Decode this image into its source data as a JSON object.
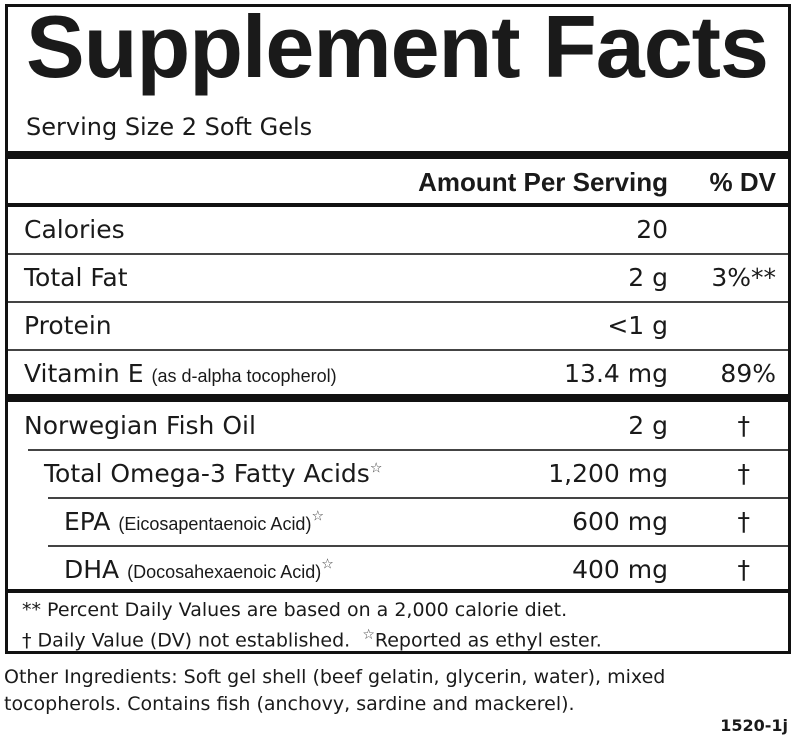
{
  "title": "Supplement Facts",
  "serving_size": "Serving Size 2 Soft Gels",
  "header": {
    "amount": "Amount Per Serving",
    "dv": "% DV"
  },
  "nutrients": [
    {
      "name": "Calories",
      "detail": "",
      "amount": "20",
      "dv": ""
    },
    {
      "name": "Total Fat",
      "detail": "",
      "amount": "2 g",
      "dv": "3%**"
    },
    {
      "name": "Protein",
      "detail": "",
      "amount": "<1 g",
      "dv": ""
    },
    {
      "name": "Vitamin E",
      "detail": "(as d-alpha tocopherol)",
      "amount": "13.4 mg",
      "dv": "89%"
    }
  ],
  "ingredients": [
    {
      "name": "Norwegian Fish Oil",
      "detail": "",
      "star": "",
      "amount": "2 g",
      "dv": "†"
    },
    {
      "name": "Total Omega-3 Fatty Acids",
      "detail": "",
      "star": "☆",
      "amount": "1,200 mg",
      "dv": "†"
    },
    {
      "name": "EPA",
      "detail": "(Eicosapentaenoic Acid)",
      "star": "☆",
      "amount": "600 mg",
      "dv": "†"
    },
    {
      "name": "DHA",
      "detail": "(Docosahexaenoic Acid)",
      "star": "☆",
      "amount": "400 mg",
      "dv": "†"
    }
  ],
  "footnotes": {
    "line1": "** Percent Daily Values are based on a 2,000 calorie diet.",
    "line2": "† Daily Value (DV) not established.",
    "line2_star": "☆",
    "line2_tail": "Reported as ethyl ester."
  },
  "other_ingredients": {
    "line1": "Other Ingredients: Soft gel shell (beef gelatin, glycerin, water), mixed",
    "line2": "tocopherols. Contains fish (anchovy, sardine and mackerel)."
  },
  "code": "1520-1j"
}
